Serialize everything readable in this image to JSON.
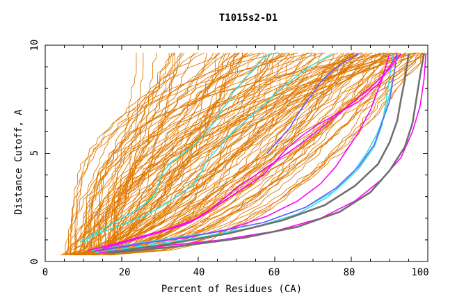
{
  "chart_data": {
    "type": "line",
    "title": "T1015s2-D1",
    "xlabel": "Percent of Residues (CA)",
    "ylabel": "Distance Cutoff, A",
    "xlim": [
      0,
      100
    ],
    "ylim": [
      0,
      10
    ],
    "x_ticks": [
      "0",
      "20",
      "40",
      "60",
      "80",
      "100"
    ],
    "y_ticks": [
      "0",
      "5",
      "10"
    ],
    "colors": {
      "orange": "#e07800",
      "cyan": "#33e0e0",
      "magenta": "#ff00ff",
      "blue": "#6a5cff",
      "gray": "#707070"
    },
    "orange_band_count": 130,
    "series": [
      {
        "name": "cyan-1",
        "color": "cyan",
        "x": [
          10,
          12,
          16,
          20,
          24,
          27,
          29,
          30,
          31,
          33,
          36,
          39,
          41,
          43,
          45,
          46,
          48,
          49,
          51,
          53,
          55,
          57,
          59,
          61
        ],
        "y": [
          0.8,
          1.2,
          1.6,
          2.0,
          2.4,
          2.8,
          3.2,
          3.8,
          4.2,
          4.6,
          5.0,
          5.4,
          5.8,
          6.2,
          6.6,
          7.0,
          7.4,
          7.8,
          8.2,
          8.6,
          9.0,
          9.4,
          9.6,
          9.65
        ]
      },
      {
        "name": "cyan-2",
        "color": "cyan",
        "x": [
          9,
          14,
          20,
          26,
          31,
          36,
          39,
          41,
          42,
          44,
          48,
          53,
          58,
          63,
          69,
          75
        ],
        "y": [
          0.9,
          1.3,
          1.7,
          2.1,
          2.6,
          3.2,
          3.6,
          4.2,
          4.6,
          5.0,
          5.8,
          6.6,
          7.4,
          8.2,
          9.0,
          9.6
        ]
      },
      {
        "name": "cyan-3",
        "color": "cyan",
        "x": [
          13,
          25,
          40,
          55,
          66,
          74,
          80,
          84,
          87,
          89,
          91,
          92
        ],
        "y": [
          0.4,
          0.7,
          1.1,
          1.6,
          2.2,
          3.0,
          4.0,
          5.0,
          6.0,
          7.0,
          8.5,
          9.6
        ]
      },
      {
        "name": "cyan-4",
        "color": "cyan",
        "x": [
          12,
          26,
          42,
          57,
          68,
          76,
          82,
          86,
          88,
          89,
          90,
          91
        ],
        "y": [
          0.5,
          0.9,
          1.3,
          1.8,
          2.5,
          3.3,
          4.3,
          5.3,
          6.3,
          7.3,
          8.5,
          9.6
        ]
      },
      {
        "name": "magenta-1",
        "color": "magenta",
        "x": [
          15,
          27,
          38,
          44,
          50,
          55,
          60,
          64,
          68,
          73,
          78,
          82,
          86,
          90,
          93
        ],
        "y": [
          0.6,
          1.2,
          1.8,
          2.5,
          3.4,
          4.0,
          4.6,
          5.1,
          5.6,
          6.3,
          7.0,
          7.6,
          8.2,
          8.9,
          9.6
        ]
      },
      {
        "name": "magenta-2",
        "color": "magenta",
        "x": [
          11,
          20,
          32,
          40,
          45,
          51,
          57,
          60,
          63,
          67,
          71,
          76,
          82,
          87,
          90,
          92
        ],
        "y": [
          0.5,
          0.9,
          1.5,
          2.0,
          2.6,
          3.3,
          4.0,
          4.6,
          5.2,
          5.8,
          6.3,
          6.8,
          7.4,
          8.2,
          9.0,
          9.6
        ]
      },
      {
        "name": "magenta-3",
        "color": "magenta",
        "x": [
          13,
          24,
          37,
          48,
          58,
          66,
          72,
          76,
          79,
          82,
          85,
          88,
          90
        ],
        "y": [
          0.5,
          0.8,
          1.1,
          1.5,
          2.1,
          2.8,
          3.6,
          4.4,
          5.2,
          6.0,
          7.0,
          8.4,
          9.6
        ]
      },
      {
        "name": "magenta-4",
        "color": "magenta",
        "x": [
          14,
          30,
          46,
          60,
          72,
          81,
          88,
          93,
          96,
          98,
          99,
          99.5
        ],
        "y": [
          0.4,
          0.7,
          1.0,
          1.4,
          2.0,
          2.8,
          3.8,
          4.8,
          6.0,
          7.2,
          8.4,
          9.6
        ]
      },
      {
        "name": "blue-1",
        "color": "blue",
        "x": [
          14,
          28,
          43,
          57,
          68,
          76,
          82,
          86,
          88,
          90,
          91,
          92
        ],
        "y": [
          0.5,
          0.9,
          1.3,
          1.8,
          2.5,
          3.4,
          4.4,
          5.4,
          6.4,
          7.4,
          8.5,
          9.6
        ]
      },
      {
        "name": "blue-2",
        "color": "blue",
        "x": [
          58,
          61,
          64,
          66,
          68,
          70,
          72,
          75,
          78,
          82
        ],
        "y": [
          5.0,
          5.6,
          6.2,
          6.8,
          7.3,
          7.8,
          8.3,
          8.8,
          9.2,
          9.6
        ]
      },
      {
        "name": "gray-1",
        "color": "gray",
        "x": [
          16,
          32,
          48,
          62,
          73,
          81,
          87,
          90,
          92,
          93,
          94,
          94.5,
          95
        ],
        "y": [
          0.4,
          0.8,
          1.3,
          1.9,
          2.6,
          3.5,
          4.5,
          5.5,
          6.5,
          7.5,
          8.4,
          9.0,
          9.6
        ]
      },
      {
        "name": "gray-2",
        "color": "gray",
        "x": [
          17,
          35,
          52,
          66,
          77,
          85,
          90,
          94,
          96,
          97,
          98,
          99
        ],
        "y": [
          0.4,
          0.7,
          1.1,
          1.6,
          2.3,
          3.2,
          4.2,
          5.3,
          6.4,
          7.5,
          8.6,
          9.6
        ]
      }
    ]
  }
}
